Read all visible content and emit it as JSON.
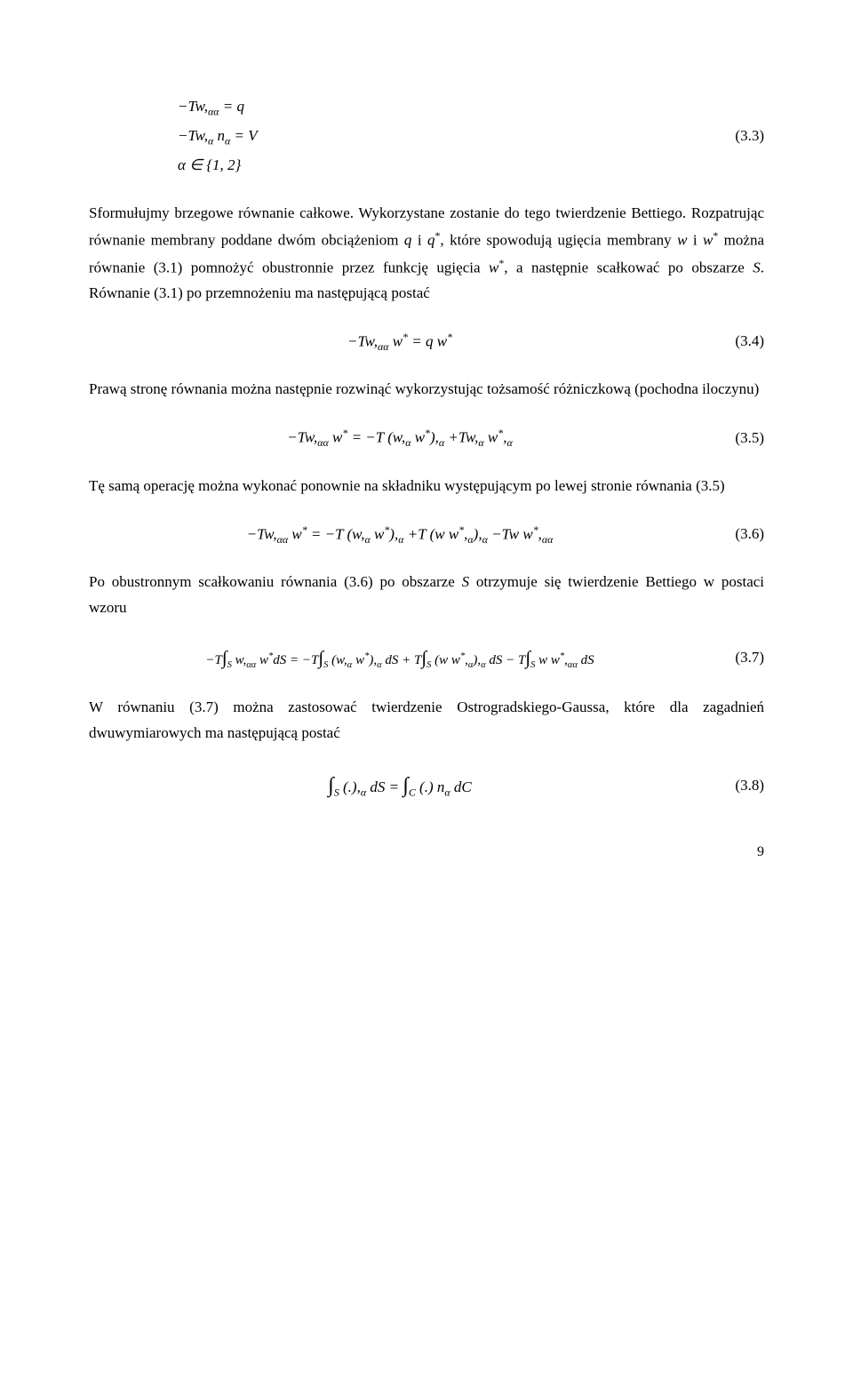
{
  "eq33": {
    "line1": "−Tw,αα = q",
    "line2": "−Tw,α nα = V",
    "line3": "α ∈ {1, 2}",
    "num": "(3.3)"
  },
  "paragraph1_pre": "Sformułujmy brzegowe równanie całkowe. Wykorzystane zostanie do tego twierdzenie Bettiego. Rozpatrując równanie membrany poddane dwóm obciążeniom ",
  "sym_q": "q",
  "paragraph1_mid1": " i ",
  "sym_qstar": "q",
  "paragraph1_mid2": ", które spowodują ugięcia membrany ",
  "sym_w": "w",
  "paragraph1_mid3": " i ",
  "sym_wstar": "w",
  "paragraph1_mid4": " można równanie (3.1) pomnożyć obustronnie przez funkcję ugięcia ",
  "paragraph1_mid5": ", a następnie scałkować po obszarze ",
  "sym_S": "S",
  "paragraph1_end": ". Równanie (3.1) po przemnożeniu ma następującą postać",
  "eq34": {
    "content": "−Tw,αα w* = q w*",
    "num": "(3.4)"
  },
  "paragraph2": "Prawą stronę równania można następnie rozwinąć wykorzystując tożsamość różniczkową (pochodna iloczynu)",
  "eq35": {
    "content": "−Tw,αα w* = −T (w,α w*),α +Tw,α w*,α",
    "num": "(3.5)"
  },
  "paragraph3": "Tę samą operację można wykonać ponownie na składniku występującym po lewej stronie równania (3.5)",
  "eq36": {
    "content": "−Tw,αα w* = −T (w,α w*),α +T (w w*,α),α −Tw w*,αα",
    "num": "(3.6)"
  },
  "paragraph4_pre": "Po obustronnym scałkowaniu równania (3.6) po obszarze ",
  "paragraph4_end": " otrzymuje się twierdzenie Bettiego w postaci wzoru",
  "eq37": {
    "content": "−T∫S w,αα w*dS = −T∫S (w,α w*),α dS + T∫S (w w*,α),α dS − T∫S w w*,αα dS",
    "num": "(3.7)"
  },
  "paragraph5": "W równaniu (3.7) można zastosować twierdzenie Ostrogradskiego-Gaussa, które dla zagadnień dwuwymiarowych ma następującą postać",
  "eq38": {
    "content": "∫S (.),α dS = ∫C (.) nα dC",
    "num": "(3.8)"
  },
  "page_number": "9"
}
